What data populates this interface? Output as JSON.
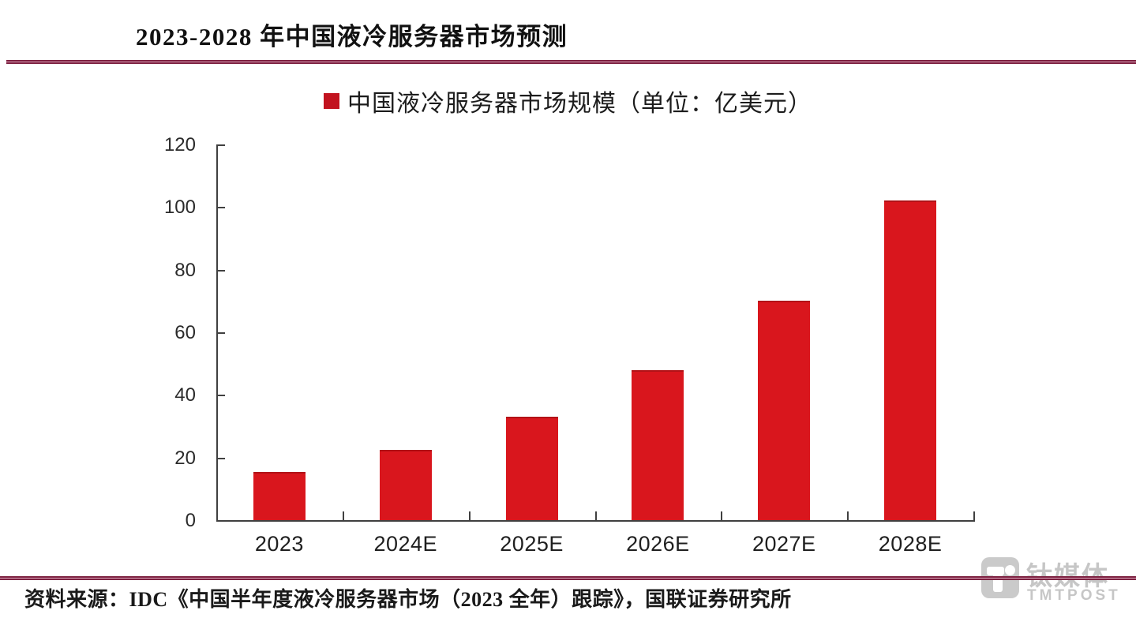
{
  "page": {
    "title": "2023-2028 年中国液冷服务器市场预测",
    "source": "资料来源：IDC《中国半年度液冷服务器市场（2023 全年）跟踪》，国联证券研究所"
  },
  "legend": {
    "label": "中国液冷服务器市场规模（单位：亿美元）"
  },
  "chart_data": {
    "type": "bar",
    "title": "2023-2028 年中国液冷服务器市场预测",
    "series_name": "中国液冷服务器市场规模（单位：亿美元）",
    "categories": [
      "2023",
      "2024E",
      "2025E",
      "2026E",
      "2027E",
      "2028E"
    ],
    "values": [
      15.5,
      22.5,
      33,
      48,
      70,
      102
    ],
    "xlabel": "",
    "ylabel": "",
    "ylim": [
      0,
      120
    ],
    "yticks": [
      0,
      20,
      40,
      60,
      80,
      100,
      120
    ],
    "grid": false,
    "legend_position": "top"
  },
  "watermark": {
    "cn": "钛媒体",
    "en": "TMTPOST"
  },
  "colors": {
    "bar": "#d9161d",
    "legend_swatch": "#c2131f",
    "rule_dark": "#7d2040",
    "rule_light": "#d9a3b8",
    "axis": "#404040",
    "watermark_gray": "#c6c6c6",
    "title_text": "#111111",
    "background": "#ffffff"
  }
}
